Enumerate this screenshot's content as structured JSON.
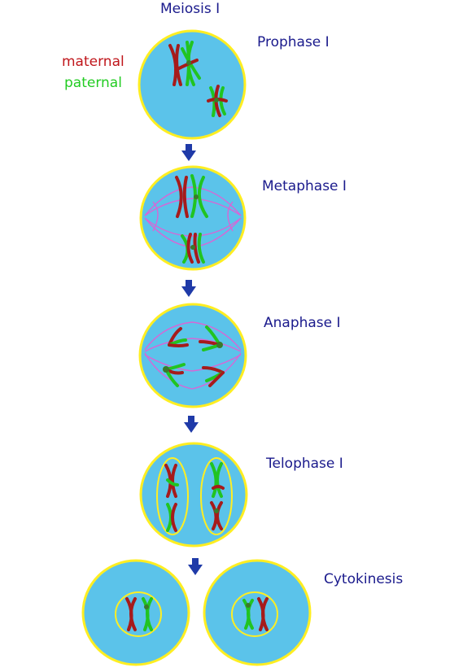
{
  "title": "Meiosis I",
  "legend": {
    "maternal": "maternal",
    "paternal": "paternal"
  },
  "stages": {
    "prophase": "Prophase I",
    "metaphase": "Metaphase I",
    "anaphase": "Anaphase I",
    "telophase": "Telophase I",
    "cytokinesis": "Cytokinesis"
  },
  "colors": {
    "cytoplasm": "#5bc3ea",
    "membrane": "#ffee22",
    "maternal": "#a61b1b",
    "paternal": "#21c421",
    "spindle": "#d766d6",
    "arrow": "#1f3aa8",
    "label": "#1a1a8c"
  }
}
